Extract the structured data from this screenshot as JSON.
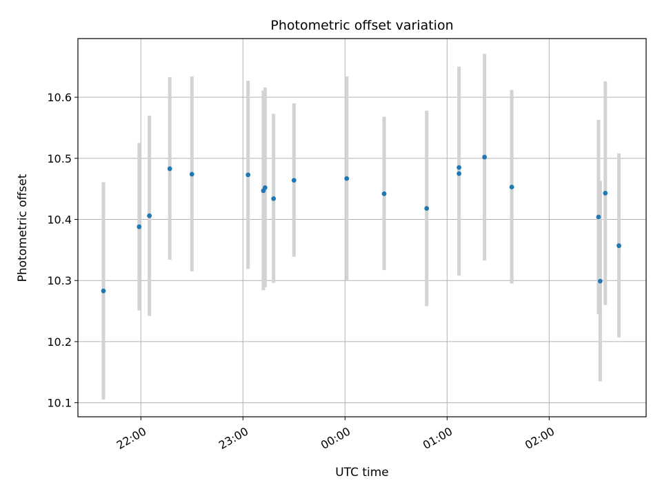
{
  "chart_data": {
    "type": "scatter",
    "title": "Photometric offset variation",
    "xlabel": "UTC time",
    "ylabel": "Photometric offset",
    "grid": true,
    "x_ticks": [
      "22:00",
      "23:00",
      "00:00",
      "01:00",
      "02:00"
    ],
    "x_tick_minutes": [
      0,
      60,
      120,
      180,
      240
    ],
    "xlim_minutes": [
      -37,
      297
    ],
    "y_ticks": [
      10.1,
      10.2,
      10.3,
      10.4,
      10.5,
      10.6
    ],
    "ylim": [
      10.077,
      10.696
    ],
    "marker_color": "#1f77b4",
    "errorbar_color": "#d3d3d3",
    "points": [
      {
        "t_min": -22,
        "y": 10.283,
        "lo": 10.105,
        "hi": 10.461
      },
      {
        "t_min": -1,
        "y": 10.388,
        "lo": 10.251,
        "hi": 10.525
      },
      {
        "t_min": 5,
        "y": 10.406,
        "lo": 10.242,
        "hi": 10.57
      },
      {
        "t_min": 17,
        "y": 10.483,
        "lo": 10.334,
        "hi": 10.633
      },
      {
        "t_min": 30,
        "y": 10.474,
        "lo": 10.315,
        "hi": 10.634
      },
      {
        "t_min": 63,
        "y": 10.473,
        "lo": 10.319,
        "hi": 10.627
      },
      {
        "t_min": 72,
        "y": 10.447,
        "lo": 10.284,
        "hi": 10.611
      },
      {
        "t_min": 73,
        "y": 10.452,
        "lo": 10.289,
        "hi": 10.616
      },
      {
        "t_min": 78,
        "y": 10.434,
        "lo": 10.296,
        "hi": 10.573
      },
      {
        "t_min": 90,
        "y": 10.464,
        "lo": 10.339,
        "hi": 10.59
      },
      {
        "t_min": 121,
        "y": 10.467,
        "lo": 10.3,
        "hi": 10.634
      },
      {
        "t_min": 143,
        "y": 10.442,
        "lo": 10.317,
        "hi": 10.568
      },
      {
        "t_min": 168,
        "y": 10.418,
        "lo": 10.258,
        "hi": 10.578
      },
      {
        "t_min": 187,
        "y": 10.485,
        "lo": 10.321,
        "hi": 10.65
      },
      {
        "t_min": 187,
        "y": 10.475,
        "lo": 10.308,
        "hi": 10.642
      },
      {
        "t_min": 202,
        "y": 10.502,
        "lo": 10.333,
        "hi": 10.671
      },
      {
        "t_min": 218,
        "y": 10.453,
        "lo": 10.295,
        "hi": 10.612
      },
      {
        "t_min": 269,
        "y": 10.404,
        "lo": 10.245,
        "hi": 10.563
      },
      {
        "t_min": 270,
        "y": 10.299,
        "lo": 10.135,
        "hi": 10.463
      },
      {
        "t_min": 273,
        "y": 10.443,
        "lo": 10.26,
        "hi": 10.626
      },
      {
        "t_min": 281,
        "y": 10.357,
        "lo": 10.207,
        "hi": 10.508
      }
    ]
  }
}
